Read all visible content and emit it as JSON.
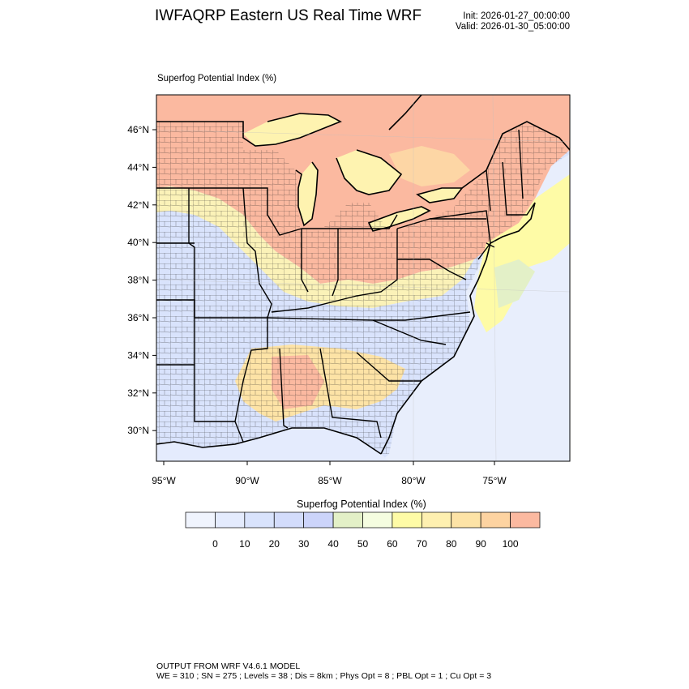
{
  "header": {
    "title": "IWFAQRP Eastern US Real Time WRF",
    "init": "Init: 2026-01-27_00:00:00",
    "valid": "Valid: 2026-01-30_05:00:00"
  },
  "field": {
    "title": "Superfog Potential Index   (%)"
  },
  "map": {
    "lat_labels": [
      "46°N",
      "44°N",
      "42°N",
      "40°N",
      "38°N",
      "36°N",
      "34°N",
      "32°N",
      "30°N"
    ],
    "lon_labels": [
      "95°W",
      "90°W",
      "85°W",
      "80°W",
      "75°W"
    ],
    "colors": {
      "high": "#fbb9a0",
      "mid_high": "#fde3a6",
      "mid": "#fef3b0",
      "yellow": "#fefba6",
      "low": "#d9e3fc",
      "very_low": "#e4ebfd",
      "water": "#e8eefc",
      "green": "#e3f0c7"
    }
  },
  "colorbar": {
    "title": "Superfog Potential Index  (%)",
    "labels": [
      "0",
      "10",
      "20",
      "30",
      "40",
      "50",
      "60",
      "70",
      "80",
      "90",
      "100"
    ],
    "colors": [
      "#f0f4fd",
      "#e4ebfd",
      "#d9e3fc",
      "#d3dcfb",
      "#ccd4fa",
      "#e3f0c7",
      "#f5fde0",
      "#fefba6",
      "#fef0b0",
      "#fde3a6",
      "#fdd3a1",
      "#fbb9a0"
    ]
  },
  "footer": {
    "line1": "OUTPUT FROM WRF V4.6.1 MODEL",
    "line2": "WE = 310 ; SN = 275 ; Levels = 38 ; Dis = 8km ; Phys Opt = 8 ; PBL Opt = 1 ; Cu Opt = 3"
  }
}
